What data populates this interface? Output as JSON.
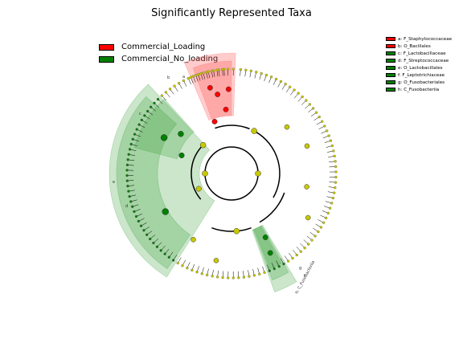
{
  "title": "Significantly Represented Taxa",
  "legend": [
    {
      "label": "Commercial_Loading",
      "color": "#ff0000"
    },
    {
      "label": "Commercial_No_loading",
      "color": "#008000"
    }
  ],
  "clade_key": [
    {
      "label": "a: F_Staphylococcaceae",
      "color": "#ff0000"
    },
    {
      "label": "b: O_Bacillales",
      "color": "#ff0000"
    },
    {
      "label": "c: F_Lactobacillaceae",
      "color": "#008000"
    },
    {
      "label": "d: F_Streptococcaceae",
      "color": "#008000"
    },
    {
      "label": "e: O_Lactobacillales",
      "color": "#008000"
    },
    {
      "label": "f: F_Leptotrichiaceae",
      "color": "#008000"
    },
    {
      "label": "g: O_Fusobacteriales",
      "color": "#008000"
    },
    {
      "label": "h: C_Fusobacteriia",
      "color": "#008000"
    }
  ],
  "sector_labels": {
    "b": "b",
    "a": "a",
    "e": "e",
    "d": "d",
    "c": "c",
    "g": "g",
    "f": "f",
    "h": "h: C_Fusobacteriia"
  }
}
